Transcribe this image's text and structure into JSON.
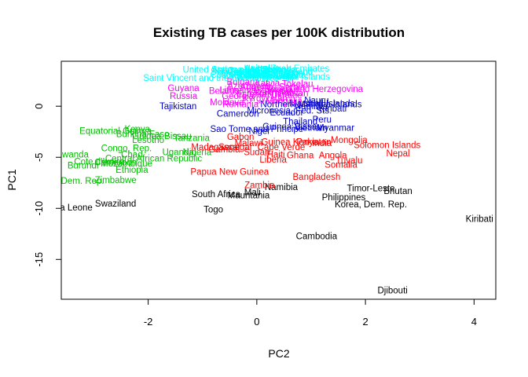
{
  "chart_data": {
    "type": "scatter",
    "title": "Existing TB cases per 100K distribution",
    "xlabel": "PC2",
    "ylabel": "PC1",
    "xlim": [
      -3.6,
      4.4
    ],
    "ylim": [
      -18.9,
      4.4
    ],
    "xticks": [
      -2,
      0,
      2,
      4
    ],
    "yticks": [
      -15,
      -10,
      -5,
      0
    ],
    "grid": false,
    "legend": "none",
    "point_style": "text labels at (PC2, PC1)",
    "clusters": [
      {
        "name": "cluster-1",
        "color": "#000000",
        "points": [
          {
            "label": "Djibouti",
            "x": 2.5,
            "y": -18.0
          },
          {
            "label": "Cambodia",
            "x": 1.1,
            "y": -12.7
          },
          {
            "label": "Kiribati",
            "x": 4.1,
            "y": -11.0
          },
          {
            "label": "Korea, Dem. Rep.",
            "x": 2.1,
            "y": -9.6
          },
          {
            "label": "Philippines",
            "x": 1.6,
            "y": -8.9
          },
          {
            "label": "Bhutan",
            "x": 2.6,
            "y": -8.3
          },
          {
            "label": "Timor-Leste",
            "x": 2.1,
            "y": -8.0
          },
          {
            "label": "Namibia",
            "x": 0.45,
            "y": -7.9
          },
          {
            "label": "Mali",
            "x": -0.08,
            "y": -8.4
          },
          {
            "label": "South Africa",
            "x": -0.75,
            "y": -8.6
          },
          {
            "label": "Mauritania",
            "x": -0.15,
            "y": -8.7
          },
          {
            "label": "Togo",
            "x": -0.8,
            "y": -10.1
          },
          {
            "label": "Swaziland",
            "x": -2.6,
            "y": -9.5
          },
          {
            "label": "Sierra Leone",
            "x": -3.5,
            "y": -9.9
          }
        ]
      },
      {
        "name": "cluster-2",
        "color": "#ff0000",
        "points": [
          {
            "label": "Solomon Islands",
            "x": 2.4,
            "y": -3.8
          },
          {
            "label": "Nepal",
            "x": 2.6,
            "y": -4.6
          },
          {
            "label": "Mongolia",
            "x": 1.7,
            "y": -3.3
          },
          {
            "label": "India",
            "x": 1.2,
            "y": -3.6
          },
          {
            "label": "Pakistan",
            "x": 1.05,
            "y": -3.5
          },
          {
            "label": "Ghana",
            "x": 0.8,
            "y": -4.8
          },
          {
            "label": "Angola",
            "x": 1.4,
            "y": -4.8
          },
          {
            "label": "Tuvalu",
            "x": 1.7,
            "y": -5.3
          },
          {
            "label": "Somalia",
            "x": 1.55,
            "y": -5.7
          },
          {
            "label": "Bangladesh",
            "x": 1.1,
            "y": -6.9
          },
          {
            "label": "Liberia",
            "x": 0.3,
            "y": -5.2
          },
          {
            "label": "Sudan",
            "x": 0.0,
            "y": -4.5
          },
          {
            "label": "Haiti",
            "x": 0.35,
            "y": -4.7
          },
          {
            "label": "Papua New Guinea",
            "x": -0.5,
            "y": -6.4
          },
          {
            "label": "Zambia",
            "x": 0.05,
            "y": -7.7
          },
          {
            "label": "Gabon",
            "x": -0.3,
            "y": -3.0
          },
          {
            "label": "Madagascar",
            "x": -0.75,
            "y": -4.0
          },
          {
            "label": "Malawi",
            "x": -0.15,
            "y": -3.6
          },
          {
            "label": "Guinea",
            "x": 0.35,
            "y": -3.5
          },
          {
            "label": "Cape Verde",
            "x": 0.45,
            "y": -4.0
          },
          {
            "label": "Gambia",
            "x": -0.6,
            "y": -4.2
          },
          {
            "label": "Senegal",
            "x": -0.4,
            "y": -4.0
          },
          {
            "label": "Kenya",
            "x": 0.9,
            "y": -3.5
          }
        ]
      },
      {
        "name": "cluster-3",
        "color": "#00c000",
        "points": [
          {
            "label": "Equatorial Guinea",
            "x": -2.6,
            "y": -2.4
          },
          {
            "label": "Kenya",
            "x": -2.2,
            "y": -2.2
          },
          {
            "label": "Burkina Faso",
            "x": -2.1,
            "y": -2.7
          },
          {
            "label": "Lesotho",
            "x": -2.0,
            "y": -3.3
          },
          {
            "label": "Guinea-Bissau",
            "x": -1.75,
            "y": -2.9
          },
          {
            "label": "Tanzania",
            "x": -1.2,
            "y": -3.1
          },
          {
            "label": "Congo, Rep.",
            "x": -2.4,
            "y": -4.1
          },
          {
            "label": "Chad",
            "x": -2.3,
            "y": -4.7
          },
          {
            "label": "Uganda",
            "x": -1.45,
            "y": -4.5
          },
          {
            "label": "Nigeria",
            "x": -1.1,
            "y": -4.5
          },
          {
            "label": "Central African Republic",
            "x": -1.9,
            "y": -5.1
          },
          {
            "label": "Rwanda",
            "x": -3.4,
            "y": -4.7
          },
          {
            "label": "Cote d'Ivoire",
            "x": -2.9,
            "y": -5.4
          },
          {
            "label": "Cameroon",
            "x": -2.6,
            "y": -5.5
          },
          {
            "label": "Mozambique",
            "x": -2.4,
            "y": -5.6
          },
          {
            "label": "Burundi",
            "x": -3.2,
            "y": -5.8
          },
          {
            "label": "Ethiopia",
            "x": -2.3,
            "y": -6.2
          },
          {
            "label": "Zimbabwe",
            "x": -2.6,
            "y": -7.2
          },
          {
            "label": "Congo, Dem. Rep.",
            "x": -3.5,
            "y": -7.3
          }
        ]
      },
      {
        "name": "cluster-4",
        "color": "#0000cd",
        "points": [
          {
            "label": "Tajikistan",
            "x": -1.45,
            "y": 0.0
          },
          {
            "label": "Cameroon",
            "x": -0.35,
            "y": -0.7
          },
          {
            "label": "Micronesia, Fed. Sts.",
            "x": 0.6,
            "y": -0.4
          },
          {
            "label": "Ecuador",
            "x": 0.55,
            "y": -0.6
          },
          {
            "label": "Northern Mariana Islands",
            "x": 1.0,
            "y": 0.2
          },
          {
            "label": "Nauru",
            "x": 1.1,
            "y": 0.6
          },
          {
            "label": "Thailand",
            "x": 0.8,
            "y": -1.5
          },
          {
            "label": "Peru",
            "x": 1.2,
            "y": -1.3
          },
          {
            "label": "Sao Tome and Principe",
            "x": 0.0,
            "y": -2.2
          },
          {
            "label": "Niger",
            "x": 0.05,
            "y": -2.4
          },
          {
            "label": "Myanmar",
            "x": 1.45,
            "y": -2.1
          },
          {
            "label": "Vietnam",
            "x": 1.0,
            "y": -2.1
          },
          {
            "label": "Guinea-Bissau",
            "x": 0.65,
            "y": -2.0
          },
          {
            "label": "Namibia",
            "x": 1.0,
            "y": 0.0
          },
          {
            "label": "Kiribati",
            "x": 1.4,
            "y": -0.2
          },
          {
            "label": "Marshall Islands",
            "x": 1.2,
            "y": 0.3
          }
        ]
      },
      {
        "name": "cluster-5",
        "color": "#ff00ff",
        "points": [
          {
            "label": "Bosnia and Herzegovina",
            "x": 1.05,
            "y": 1.7
          },
          {
            "label": "Tokelau",
            "x": 0.75,
            "y": 2.2
          },
          {
            "label": "Guyana",
            "x": -1.35,
            "y": 1.8
          },
          {
            "label": "Russia",
            "x": -1.35,
            "y": 1.0
          },
          {
            "label": "Romania",
            "x": -0.3,
            "y": 0.2
          },
          {
            "label": "Moldova",
            "x": -0.55,
            "y": 0.4
          },
          {
            "label": "Georgia",
            "x": -0.35,
            "y": 1.0
          },
          {
            "label": "Kazakhstan",
            "x": 0.25,
            "y": 1.4
          },
          {
            "label": "Armenia",
            "x": 0.0,
            "y": 1.9
          },
          {
            "label": "Uzbekistan",
            "x": 0.35,
            "y": 1.6
          },
          {
            "label": "Azerbaijan",
            "x": -0.15,
            "y": 2.0
          },
          {
            "label": "Ukraine",
            "x": 0.55,
            "y": 1.1
          },
          {
            "label": "Belarus",
            "x": -0.6,
            "y": 1.5
          },
          {
            "label": "Kyrgyzstan",
            "x": 0.15,
            "y": 0.8
          },
          {
            "label": "Turkmenistan",
            "x": 0.45,
            "y": 1.3
          },
          {
            "label": "Lithuania",
            "x": -0.35,
            "y": 1.6
          },
          {
            "label": "Latvia",
            "x": 0.2,
            "y": 2.3
          },
          {
            "label": "Estonia",
            "x": -0.1,
            "y": 1.2
          },
          {
            "label": "Mongolia",
            "x": 0.5,
            "y": 0.5
          },
          {
            "label": "Bulgaria",
            "x": -0.25,
            "y": 2.4
          },
          {
            "label": "Serbia",
            "x": 0.65,
            "y": 1.9
          }
        ]
      },
      {
        "name": "cluster-6",
        "color": "#00ffff",
        "points": [
          {
            "label": "Saint Vincent and the Grenadines",
            "x": -0.85,
            "y": 2.8
          },
          {
            "label": "United States of America",
            "x": -0.45,
            "y": 3.6
          },
          {
            "label": "Antigua and Barbuda",
            "x": -0.05,
            "y": 3.6
          },
          {
            "label": "Bahamas",
            "x": 0.35,
            "y": 3.5
          },
          {
            "label": "Barbados",
            "x": 0.5,
            "y": 3.2
          },
          {
            "label": "Dominica",
            "x": -0.3,
            "y": 3.2
          },
          {
            "label": "Grenada",
            "x": -0.1,
            "y": 3.0
          },
          {
            "label": "Saint Lucia",
            "x": 0.2,
            "y": 3.1
          },
          {
            "label": "Jamaica",
            "x": 0.05,
            "y": 3.3
          },
          {
            "label": "Costa Rica",
            "x": -0.45,
            "y": 3.1
          },
          {
            "label": "Cuba",
            "x": 0.55,
            "y": 2.9
          },
          {
            "label": "Canada",
            "x": -0.25,
            "y": 3.5
          },
          {
            "label": "Australia",
            "x": 0.1,
            "y": 3.7
          },
          {
            "label": "Iceland",
            "x": -0.05,
            "y": 3.4
          },
          {
            "label": "Norway",
            "x": 0.35,
            "y": 3.6
          },
          {
            "label": "Sweden",
            "x": -0.55,
            "y": 3.4
          },
          {
            "label": "Netherlands",
            "x": 0.3,
            "y": 3.0
          },
          {
            "label": "Switzerland",
            "x": 0.6,
            "y": 3.4
          },
          {
            "label": "Malta",
            "x": 0.7,
            "y": 3.1
          },
          {
            "label": "Luxembourg",
            "x": 0.15,
            "y": 2.9
          },
          {
            "label": "Cyprus",
            "x": -0.35,
            "y": 3.0
          },
          {
            "label": "United Arab Emirates",
            "x": 0.55,
            "y": 3.7
          },
          {
            "label": "Virgin Islands",
            "x": 0.85,
            "y": 2.9
          }
        ]
      }
    ]
  }
}
